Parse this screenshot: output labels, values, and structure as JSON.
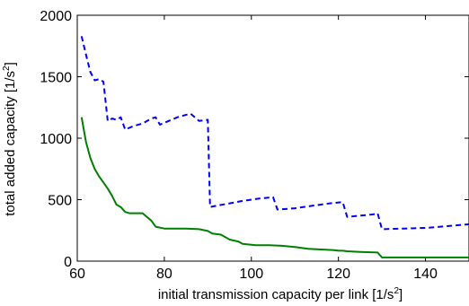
{
  "chart_data": {
    "type": "line",
    "title": "",
    "xlabel": {
      "main": "initial transmission capacity per link [1/s",
      "sup": "2",
      "end": "]"
    },
    "ylabel": {
      "main": "total added capacity [1/s",
      "sup": "2",
      "end": "]"
    },
    "xlim": [
      60,
      150
    ],
    "ylim": [
      0,
      2000
    ],
    "xticks": [
      60,
      80,
      100,
      120,
      140
    ],
    "yticks": [
      0,
      500,
      1000,
      1500,
      2000
    ],
    "grid": false,
    "legend": "none",
    "series": [
      {
        "color": "#0000ff",
        "style": "dashed",
        "points": [
          [
            61,
            1830
          ],
          [
            62,
            1680
          ],
          [
            63,
            1540
          ],
          [
            64,
            1470
          ],
          [
            65,
            1480
          ],
          [
            66,
            1460
          ],
          [
            67,
            1140
          ],
          [
            68,
            1160
          ],
          [
            69,
            1150
          ],
          [
            70,
            1170
          ],
          [
            71,
            1070
          ],
          [
            73,
            1100
          ],
          [
            75,
            1120
          ],
          [
            77,
            1160
          ],
          [
            78,
            1170
          ],
          [
            79,
            1110
          ],
          [
            81,
            1140
          ],
          [
            83,
            1170
          ],
          [
            86,
            1200
          ],
          [
            88,
            1140
          ],
          [
            90,
            1150
          ],
          [
            90.5,
            440
          ],
          [
            92,
            450
          ],
          [
            95,
            470
          ],
          [
            98,
            490
          ],
          [
            102,
            510
          ],
          [
            105,
            520
          ],
          [
            106,
            420
          ],
          [
            110,
            430
          ],
          [
            114,
            450
          ],
          [
            118,
            470
          ],
          [
            121,
            480
          ],
          [
            122,
            360
          ],
          [
            125,
            370
          ],
          [
            128,
            380
          ],
          [
            129,
            390
          ],
          [
            130,
            260
          ],
          [
            135,
            265
          ],
          [
            140,
            270
          ],
          [
            145,
            285
          ],
          [
            150,
            300
          ]
        ]
      },
      {
        "color": "#008000",
        "style": "solid",
        "points": [
          [
            61,
            1170
          ],
          [
            62,
            970
          ],
          [
            63,
            840
          ],
          [
            64,
            750
          ],
          [
            65,
            690
          ],
          [
            66,
            640
          ],
          [
            67,
            590
          ],
          [
            68,
            530
          ],
          [
            69,
            460
          ],
          [
            70,
            440
          ],
          [
            71,
            400
          ],
          [
            72,
            390
          ],
          [
            75,
            390
          ],
          [
            76,
            360
          ],
          [
            77,
            330
          ],
          [
            78,
            280
          ],
          [
            80,
            265
          ],
          [
            82,
            265
          ],
          [
            85,
            265
          ],
          [
            88,
            260
          ],
          [
            90,
            245
          ],
          [
            91,
            225
          ],
          [
            93,
            215
          ],
          [
            95,
            175
          ],
          [
            97,
            160
          ],
          [
            98,
            140
          ],
          [
            101,
            130
          ],
          [
            104,
            130
          ],
          [
            107,
            125
          ],
          [
            110,
            115
          ],
          [
            113,
            100
          ],
          [
            116,
            95
          ],
          [
            119,
            90
          ],
          [
            120,
            85
          ],
          [
            121,
            85
          ],
          [
            122,
            80
          ],
          [
            125,
            75
          ],
          [
            129,
            70
          ],
          [
            130,
            30
          ],
          [
            140,
            30
          ],
          [
            150,
            30
          ]
        ]
      }
    ]
  }
}
